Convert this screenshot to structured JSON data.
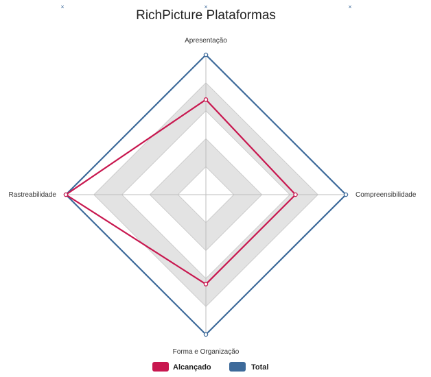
{
  "chart_data": {
    "type": "radar",
    "title": "RichPicture Plataformas",
    "axes": [
      "Apresentação",
      "Compreensibilidade",
      "Forma e Organização",
      "Rastreabilidade"
    ],
    "range": [
      0,
      5
    ],
    "series": [
      {
        "name": "Alcançado",
        "color": "#c8174f",
        "values": [
          3.4,
          3.2,
          3.2,
          5.0
        ]
      },
      {
        "name": "Total",
        "color": "#3d6a9a",
        "values": [
          5,
          5,
          5,
          5
        ]
      }
    ],
    "grid": true,
    "legend_position": "bottom"
  }
}
